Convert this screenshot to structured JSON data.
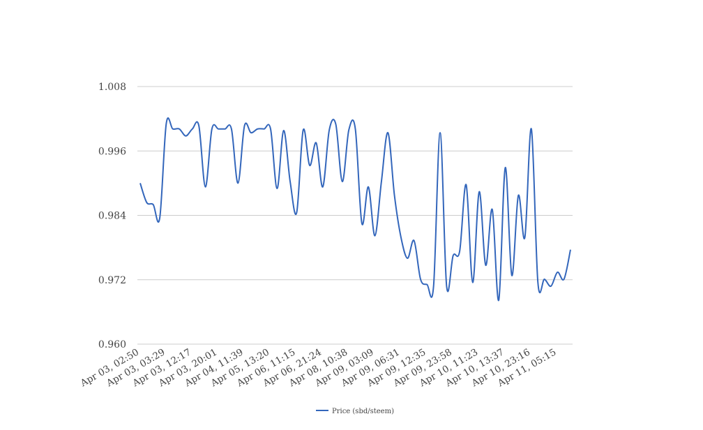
{
  "chart_data": {
    "type": "line",
    "categories": [
      "Apr 03, 02:50",
      null,
      null,
      null,
      "Apr 03, 03:29",
      null,
      null,
      null,
      "Apr 03, 12:17",
      null,
      null,
      null,
      "Apr 03, 20:01",
      null,
      null,
      null,
      "Apr 04, 11:39",
      null,
      null,
      null,
      "Apr 05, 13:20",
      null,
      null,
      null,
      "Apr 06, 11:15",
      null,
      null,
      null,
      "Apr 06, 21:24",
      null,
      null,
      null,
      "Apr 08, 10:38",
      null,
      null,
      null,
      "Apr 09, 03:09",
      null,
      null,
      null,
      "Apr 09, 06:31",
      null,
      null,
      null,
      "Apr 09, 12:35",
      null,
      null,
      null,
      "Apr 09, 23:58",
      null,
      null,
      null,
      "Apr 10, 11:23",
      null,
      null,
      null,
      "Apr 10, 13:37",
      null,
      null,
      null,
      "Apr 10, 23:16",
      null,
      null,
      null,
      "Apr 11, 05:15",
      null,
      null
    ],
    "series": [
      {
        "name": "Price (sbd/steem)",
        "color": "#3366bb",
        "values": [
          0.99,
          0.9864,
          0.986,
          0.9835,
          1.0011,
          1.0001,
          1.0001,
          0.9988,
          1.0001,
          1.0007,
          0.9893,
          1.0001,
          1.0001,
          1.0001,
          1.0001,
          0.99,
          1.0007,
          0.9994,
          1.0001,
          1.0001,
          1.0001,
          0.989,
          0.9998,
          0.9903,
          0.9845,
          0.9999,
          0.9933,
          0.9975,
          0.9893,
          0.9999,
          1.001,
          0.9903,
          0.9999,
          1.0001,
          0.9825,
          0.9893,
          0.9802,
          0.9903,
          0.9994,
          0.9877,
          0.9799,
          0.976,
          0.9793,
          0.9721,
          0.9711,
          0.9708,
          0.9994,
          0.9708,
          0.9765,
          0.9773,
          0.9897,
          0.9715,
          0.9884,
          0.9747,
          0.9851,
          0.9682,
          0.9929,
          0.9728,
          0.9877,
          0.9799,
          1.0001,
          0.9715,
          0.9721,
          0.9708,
          0.9734,
          0.9721,
          0.9776
        ]
      }
    ],
    "ylim": [
      0.96,
      1.008
    ],
    "yticks": [
      {
        "value": 0.96,
        "label": "0.960"
      },
      {
        "value": 0.972,
        "label": "0.972"
      },
      {
        "value": 0.984,
        "label": "0.984"
      },
      {
        "value": 0.996,
        "label": "0.996"
      },
      {
        "value": 1.008,
        "label": "1.008"
      }
    ],
    "grid": true,
    "legend": "bottom"
  }
}
